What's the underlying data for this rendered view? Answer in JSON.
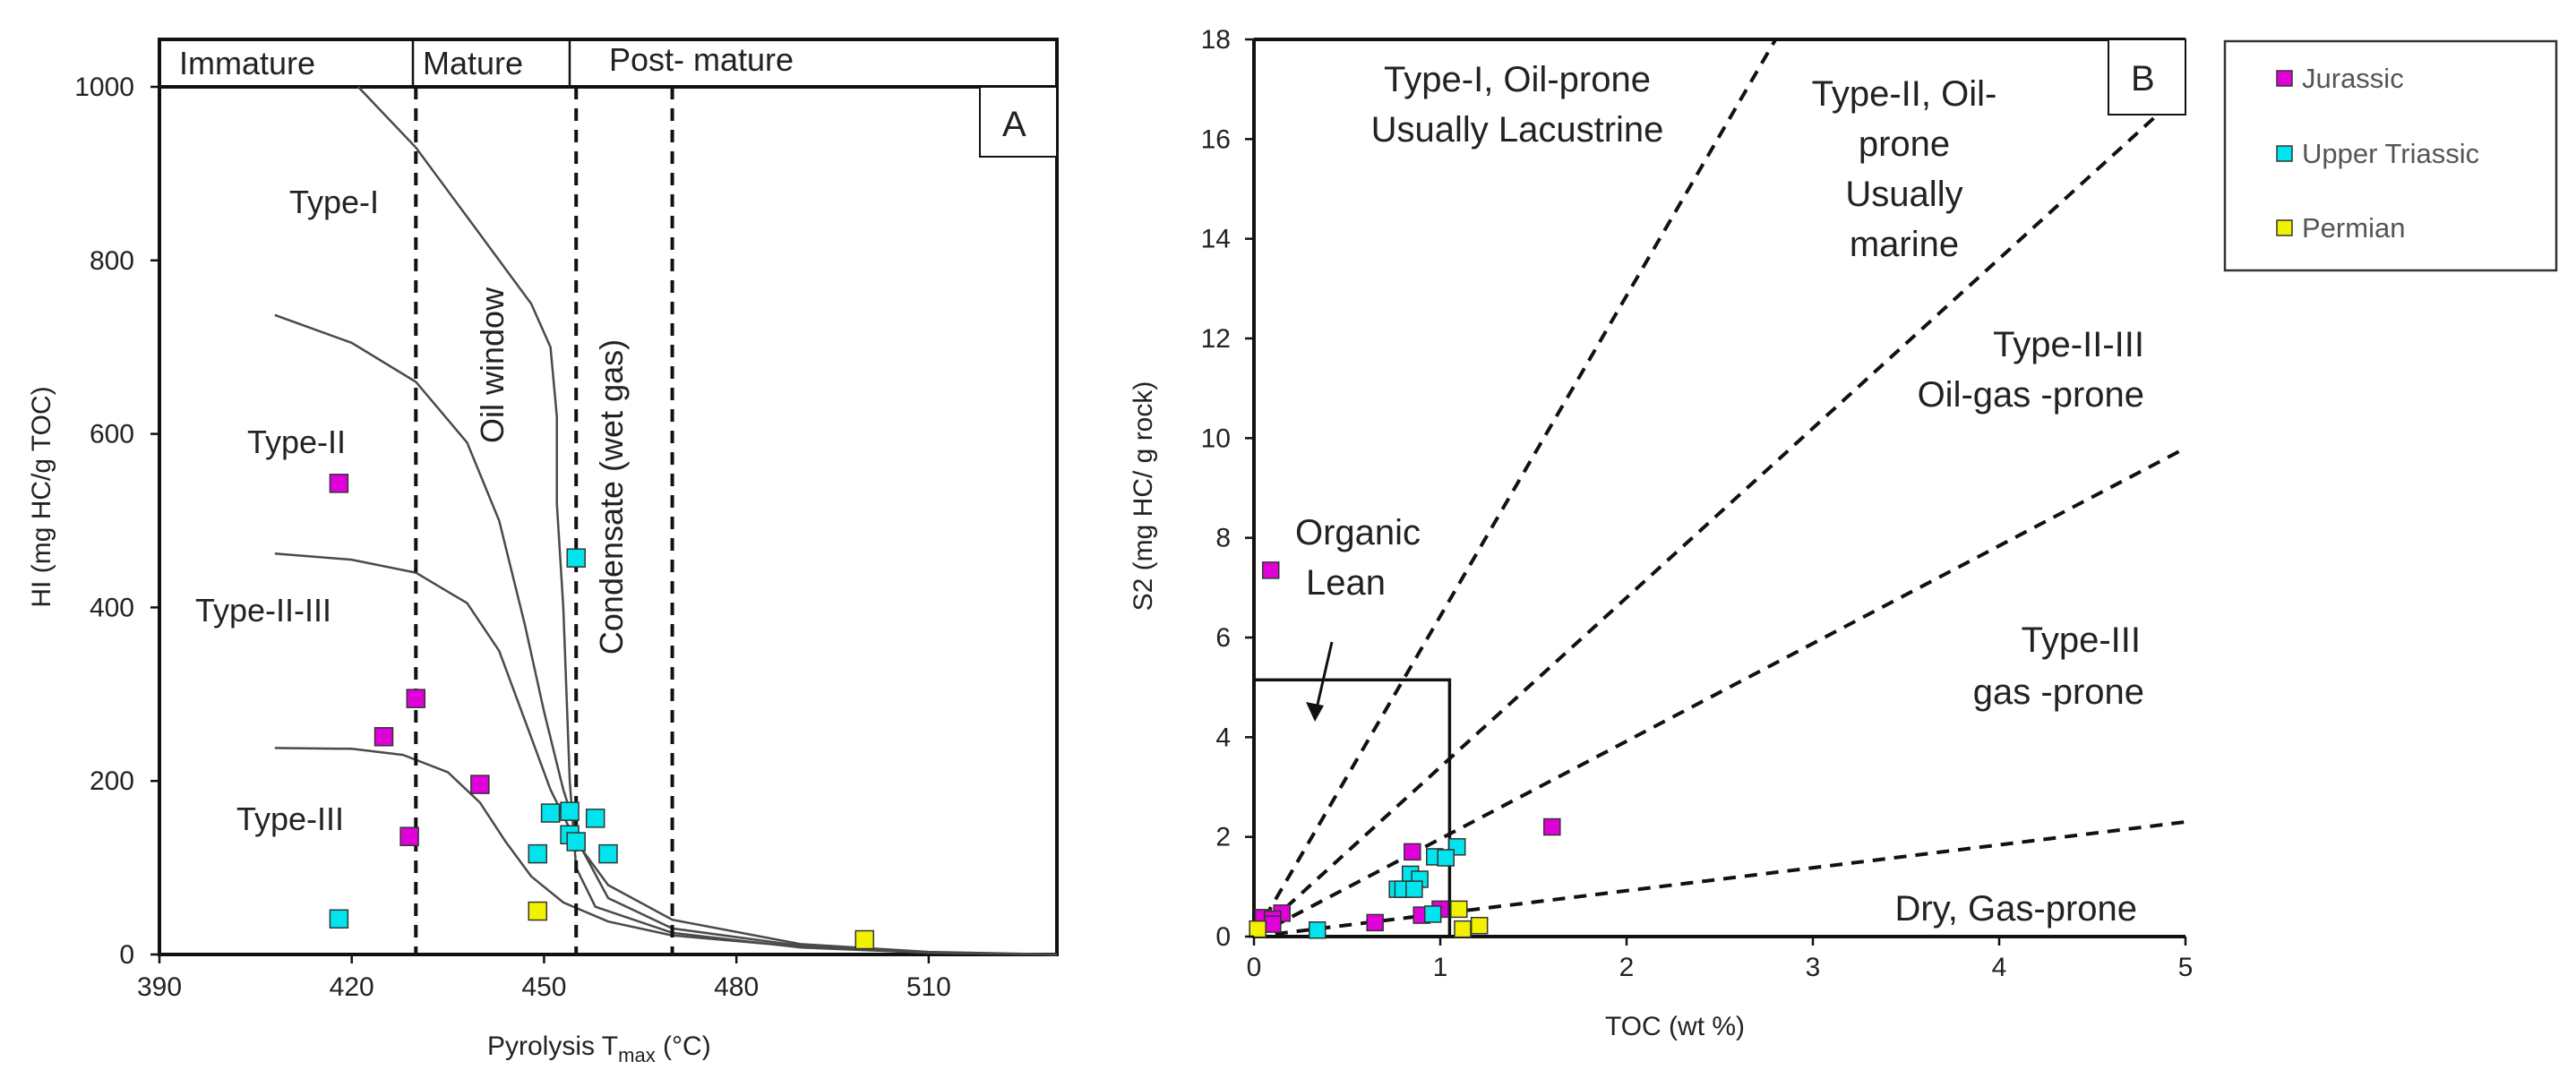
{
  "colors": {
    "jurassic": "#e000d8",
    "upper_triassic": "#00e4ee",
    "permian": "#f2f200",
    "marker_edge": "#333333"
  },
  "legend": {
    "items": [
      {
        "key": "jurassic",
        "label": "Jurassic"
      },
      {
        "key": "upper_triassic",
        "label": "Upper Triassic"
      },
      {
        "key": "permian",
        "label": "Permian"
      }
    ]
  },
  "chart_data": [
    {
      "panel": "A",
      "type": "scatter",
      "xlabel_main": "Pyrolysis T",
      "xlabel_sub": "max",
      "xlabel_unit": " (°C)",
      "ylabel": "HI (mg HC/g TOC)",
      "xlim": [
        390,
        530
      ],
      "ylim": [
        0,
        1000
      ],
      "xticks": [
        "390",
        "420",
        "450",
        "480",
        "510"
      ],
      "xtick_values": [
        390,
        420,
        450,
        480,
        510
      ],
      "yticks": [
        "0",
        "200",
        "400",
        "600",
        "800",
        "1000"
      ],
      "ytick_values": [
        0,
        200,
        400,
        600,
        800,
        1000
      ],
      "maturity_header": [
        "Immature",
        "Mature",
        "Post- mature"
      ],
      "maturity_boundaries": [
        430,
        455,
        470
      ],
      "zone_labels": {
        "oil_window": "Oil window",
        "condensate": "Condensate (wet gas)"
      },
      "type_labels": [
        "Type-I",
        "Type-II",
        "Type-II-III",
        "Type-III"
      ],
      "series": [
        {
          "name": "Jurassic",
          "color_key": "jurassic",
          "points": [
            [
              418,
              543
            ],
            [
              430,
              295
            ],
            [
              425,
              251
            ],
            [
              440,
              196
            ],
            [
              429,
              136
            ]
          ]
        },
        {
          "name": "Upper Triassic",
          "color_key": "upper_triassic",
          "points": [
            [
              455,
              457
            ],
            [
              451,
              163
            ],
            [
              454,
              165
            ],
            [
              458,
              157
            ],
            [
              454,
              138
            ],
            [
              455,
              130
            ],
            [
              449,
              116
            ],
            [
              460,
              116
            ],
            [
              418,
              41
            ]
          ]
        },
        {
          "name": "Permian",
          "color_key": "permian",
          "points": [
            [
              449,
              50
            ],
            [
              500,
              17
            ]
          ]
        }
      ],
      "curves": [
        {
          "name": "Type-I",
          "points": [
            [
              421,
              1000
            ],
            [
              430,
              930
            ],
            [
              440,
              830
            ],
            [
              448,
              750
            ],
            [
              451,
              700
            ],
            [
              452,
              620
            ],
            [
              452,
              520
            ],
            [
              453,
              400
            ],
            [
              454,
              200
            ],
            [
              455,
              100
            ],
            [
              458,
              55
            ],
            [
              470,
              25
            ],
            [
              490,
              8
            ],
            [
              510,
              2
            ],
            [
              530,
              0
            ]
          ]
        },
        {
          "name": "Type-II",
          "points": [
            [
              408,
              737
            ],
            [
              420,
              705
            ],
            [
              430,
              660
            ],
            [
              438,
              590
            ],
            [
              443,
              500
            ],
            [
              447,
              380
            ],
            [
              450,
              280
            ],
            [
              453,
              190
            ],
            [
              456,
              120
            ],
            [
              460,
              65
            ],
            [
              470,
              30
            ],
            [
              490,
              10
            ],
            [
              510,
              2
            ],
            [
              530,
              0
            ]
          ]
        },
        {
          "name": "Type-II-III",
          "points": [
            [
              408,
              462
            ],
            [
              420,
              455
            ],
            [
              430,
              440
            ],
            [
              438,
              405
            ],
            [
              443,
              350
            ],
            [
              447,
              270
            ],
            [
              451,
              190
            ],
            [
              455,
              130
            ],
            [
              460,
              80
            ],
            [
              470,
              40
            ],
            [
              490,
              12
            ],
            [
              510,
              3
            ],
            [
              530,
              0
            ]
          ]
        },
        {
          "name": "Type-III",
          "points": [
            [
              408,
              238
            ],
            [
              420,
              237
            ],
            [
              428,
              230
            ],
            [
              435,
              210
            ],
            [
              440,
              175
            ],
            [
              444,
              130
            ],
            [
              448,
              90
            ],
            [
              453,
              60
            ],
            [
              460,
              38
            ],
            [
              470,
              22
            ],
            [
              490,
              9
            ],
            [
              510,
              2
            ],
            [
              530,
              0
            ]
          ]
        }
      ]
    },
    {
      "panel": "B",
      "type": "scatter",
      "xlabel": "TOC (wt %)",
      "ylabel": "S2 (mg HC/ g rock)",
      "xlim": [
        0,
        5
      ],
      "ylim": [
        0,
        18
      ],
      "xticks": [
        "0",
        "1",
        "2",
        "3",
        "4",
        "5"
      ],
      "xtick_values": [
        0,
        1,
        2,
        3,
        4,
        5
      ],
      "yticks": [
        "0",
        "2",
        "4",
        "6",
        "8",
        "10",
        "12",
        "14",
        "16",
        "18"
      ],
      "ytick_values": [
        0,
        2,
        4,
        6,
        8,
        10,
        12,
        14,
        16,
        18
      ],
      "organic_lean_box": {
        "x_max": 1.05,
        "y_max": 5.15
      },
      "boundary_line_endpoints": [
        [
          2.8,
          18
        ],
        [
          5,
          17
        ],
        [
          5,
          9.8
        ],
        [
          5,
          2.3
        ]
      ],
      "region_labels": {
        "type_i": [
          "Type-I, Oil-prone",
          "Usually Lacustrine"
        ],
        "type_ii": [
          "Type-II, Oil-",
          "prone",
          "Usually",
          "marine"
        ],
        "type_ii_iii": [
          "Type-II-III",
          "Oil-gas -prone"
        ],
        "type_iii": [
          "Type-III",
          "gas -prone"
        ],
        "dry_gas": "Dry, Gas-prone",
        "organic_lean": [
          "Organic",
          "Lean"
        ]
      },
      "series": [
        {
          "name": "Jurassic",
          "color_key": "jurassic",
          "points": [
            [
              0.09,
              7.35
            ],
            [
              1.6,
              2.2
            ],
            [
              0.85,
              1.7
            ],
            [
              0.05,
              0.38
            ],
            [
              0.15,
              0.47
            ],
            [
              0.1,
              0.35
            ],
            [
              0.1,
              0.25
            ],
            [
              0.65,
              0.28
            ],
            [
              0.9,
              0.43
            ],
            [
              1.0,
              0.55
            ]
          ]
        },
        {
          "name": "Upper Triassic",
          "color_key": "upper_triassic",
          "points": [
            [
              1.09,
              1.8
            ],
            [
              0.97,
              1.6
            ],
            [
              1.03,
              1.58
            ],
            [
              0.84,
              1.25
            ],
            [
              0.89,
              1.15
            ],
            [
              0.77,
              0.95
            ],
            [
              0.8,
              0.95
            ],
            [
              0.86,
              0.95
            ],
            [
              0.96,
              0.45
            ],
            [
              0.34,
              0.13
            ]
          ]
        },
        {
          "name": "Permian",
          "color_key": "permian",
          "points": [
            [
              0.02,
              0.15
            ],
            [
              1.1,
              0.55
            ],
            [
              1.21,
              0.22
            ],
            [
              1.12,
              0.15
            ]
          ]
        }
      ]
    }
  ]
}
